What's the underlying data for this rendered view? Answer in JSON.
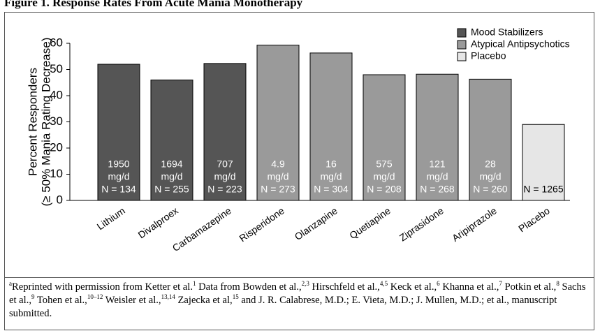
{
  "chart_data": {
    "type": "bar",
    "title": "Figure 1. Response Rates From Acute Mania Monotherapy",
    "ylabel": [
      "Percent Responders",
      "(≥ 50% Mania Rating Decrease)"
    ],
    "categories": [
      "Lithium",
      "Divalproex",
      "Carbamazepine",
      "Risperidone",
      "Olanzapine",
      "Quetiapine",
      "Ziprasidone",
      "Aripiprazole",
      "Placebo"
    ],
    "values": [
      52,
      46,
      52.3,
      59.3,
      56.3,
      48,
      48.2,
      46.3,
      29
    ],
    "colors": [
      "#555555",
      "#555555",
      "#555555",
      "#9a9a9a",
      "#9a9a9a",
      "#9a9a9a",
      "#9a9a9a",
      "#9a9a9a",
      "#e6e6e6"
    ],
    "bar_labels": [
      [
        "1950",
        "mg/d",
        "N = 134"
      ],
      [
        "1694",
        "mg/d",
        "N = 255"
      ],
      [
        "707",
        "mg/d",
        "N = 223"
      ],
      [
        "4.9",
        "mg/d",
        "N = 273"
      ],
      [
        "16",
        "mg/d",
        "N = 304"
      ],
      [
        "575",
        "mg/d",
        "N = 208"
      ],
      [
        "121",
        "mg/d",
        "N = 268"
      ],
      [
        "28",
        "mg/d",
        "N = 260"
      ],
      [
        "N = 1265"
      ]
    ],
    "bar_label_colors": [
      "#ffffff",
      "#ffffff",
      "#ffffff",
      "#ffffff",
      "#ffffff",
      "#ffffff",
      "#ffffff",
      "#ffffff",
      "#000000"
    ],
    "legend": [
      {
        "name": "Mood Stabilizers",
        "color": "#555555"
      },
      {
        "name": "Atypical Antipsychotics",
        "color": "#9a9a9a"
      },
      {
        "name": "Placebo",
        "color": "#e6e6e6"
      }
    ],
    "ylim": [
      0,
      60
    ],
    "yticks": [
      0,
      10,
      20,
      30,
      40,
      50,
      60
    ]
  },
  "footnote": [
    "a",
    "Reprinted with permission from Ketter et al.",
    "1",
    " Data from Bowden et al.,",
    "2,3",
    " Hirschfeld et al.,",
    "4,5",
    " Keck et al.,",
    "6",
    " Khanna et al.,",
    "7",
    " Potkin et al.,",
    "8",
    " Sachs et al.,",
    "9",
    " Tohen et al.,",
    "10–12",
    " Weisler et al.,",
    "13,14",
    " Zajecka et al,",
    "15",
    " and J. R. Calabrese, M.D.; E. Vieta, M.D.; J. Mullen, M.D.; et al., manuscript submitted."
  ]
}
